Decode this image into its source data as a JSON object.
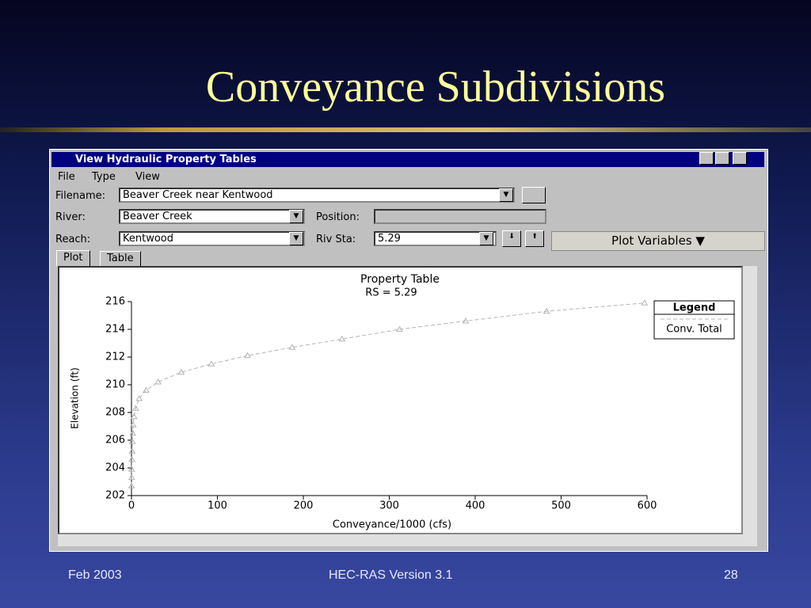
{
  "slide": {
    "title": "Conveyance Subdivisions",
    "footer_left": "Feb 2003",
    "footer_center": "HEC-RAS Version 3.1",
    "footer_right": "28"
  },
  "window": {
    "title": "View Hydraulic Property Tables",
    "menu": [
      "File",
      "Type",
      "View"
    ],
    "fields": {
      "filename_label": "Filename:",
      "filename": "Beaver Creek near Kentwood",
      "river_label": "River:",
      "river": "Beaver Creek",
      "position_label": "Position:",
      "reach_label": "Reach:",
      "reach": "Kentwood",
      "riv_sta_label": "Riv Sta:",
      "riv_sta": "5.29"
    },
    "plot_variables": "Plot Variables ▼",
    "tabs": [
      "Plot",
      "Table"
    ]
  },
  "chart_data": {
    "type": "line",
    "title": "Property Table",
    "subtitle": "RS = 5.29",
    "x_label": "Conveyance/1000 (cfs)",
    "y_label": "Elevation (ft)",
    "x": [
      0.1,
      0.2,
      0.3,
      0.5,
      0.7,
      1,
      1.5,
      2,
      3,
      5,
      9,
      17,
      31,
      58,
      93,
      135,
      187,
      245,
      312,
      389,
      483,
      597
    ],
    "series": [
      {
        "name": "Conv. Total",
        "color": "#b4b4b4",
        "marker": "triangle",
        "dashed": true,
        "values": [
          202.7,
          203.3,
          203.9,
          204.6,
          205.2,
          205.9,
          206.5,
          207.1,
          207.7,
          208.3,
          209.0,
          209.6,
          210.2,
          210.9,
          211.5,
          212.1,
          212.7,
          213.3,
          214.0,
          214.6,
          215.3,
          215.9
        ]
      }
    ],
    "xlim": [
      0,
      600
    ],
    "xticks": [
      0,
      100,
      200,
      300,
      400,
      500,
      600
    ],
    "ylim": [
      202,
      216
    ],
    "yticks": [
      202,
      204,
      206,
      208,
      210,
      212,
      214,
      216
    ],
    "grid": false,
    "legend_title": "Legend",
    "legend_position": "upper right"
  }
}
